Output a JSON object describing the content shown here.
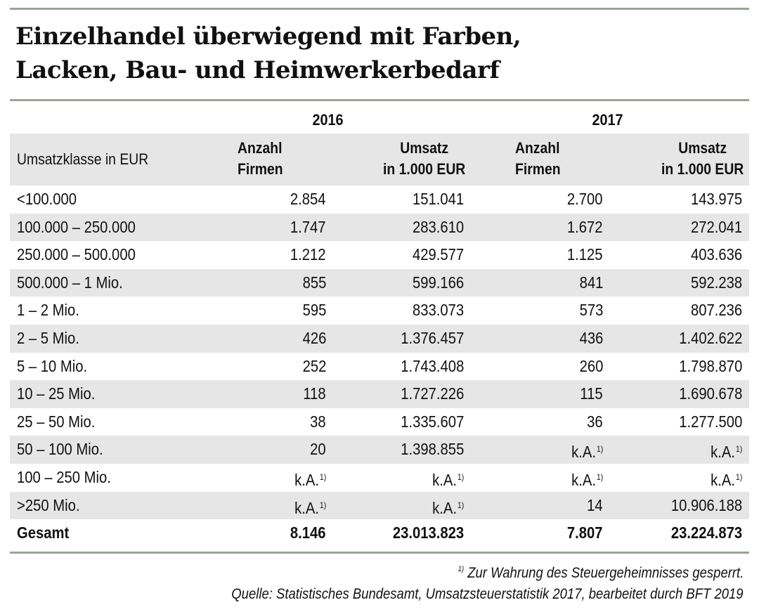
{
  "title": [
    "Einzelhandel überwiegend mit Farben,",
    "Lacken, Bau- und Heimwerkerbedarf"
  ],
  "colors": {
    "rule": "#9ba496",
    "band": "#e6e6e6"
  },
  "years": [
    "2016",
    "2017"
  ],
  "header": {
    "label": "Umsatzklasse in EUR",
    "anzahl": [
      "Anzahl",
      "Firmen"
    ],
    "umsatz": [
      "Umsatz",
      "in 1.000 EUR"
    ]
  },
  "rows": [
    {
      "label": "<100.000",
      "cells": [
        "2.854",
        "151.041",
        "2.700",
        "143.975"
      ]
    },
    {
      "label": "100.000 – 250.000",
      "cells": [
        "1.747",
        "283.610",
        "1.672",
        "272.041"
      ]
    },
    {
      "label": "250.000 – 500.000",
      "cells": [
        "1.212",
        "429.577",
        "1.125",
        "403.636"
      ]
    },
    {
      "label": "500.000 – 1 Mio.",
      "cells": [
        "855",
        "599.166",
        "841",
        "592.238"
      ]
    },
    {
      "label": "1 – 2 Mio.",
      "cells": [
        "595",
        "833.073",
        "573",
        "807.236"
      ]
    },
    {
      "label": "2 – 5 Mio.",
      "cells": [
        "426",
        "1.376.457",
        "436",
        "1.402.622"
      ]
    },
    {
      "label": "5 – 10 Mio.",
      "cells": [
        "252",
        "1.743.408",
        "260",
        "1.798.870"
      ]
    },
    {
      "label": "10 – 25 Mio.",
      "cells": [
        "118",
        "1.727.226",
        "115",
        "1.690.678"
      ]
    },
    {
      "label": "25 – 50 Mio.",
      "cells": [
        "38",
        "1.335.607",
        "36",
        "1.277.500"
      ]
    },
    {
      "label": "50 – 100 Mio.",
      "cells": [
        "20",
        "1.398.855",
        "k.A.",
        "k.A."
      ]
    },
    {
      "label": "100 – 250 Mio.",
      "cells": [
        "k.A.",
        "k.A.",
        "k.A.",
        "k.A."
      ]
    },
    {
      "label": ">250 Mio.",
      "cells": [
        "k.A.",
        "k.A.",
        "14",
        "10.906.188"
      ]
    },
    {
      "label": "Gesamt",
      "cells": [
        "8.146",
        "23.013.823",
        "7.807",
        "23.224.873"
      ],
      "bold": true
    }
  ],
  "footnote": {
    "marker": "1)",
    "na_value": "k.A.",
    "text": "Zur Wahrung des Steuergeheimnisses gesperrt."
  },
  "source": "Quelle: Statistisches Bundesamt, Umsatzsteuerstatistik 2017, bearbeitet durch BFT 2019"
}
